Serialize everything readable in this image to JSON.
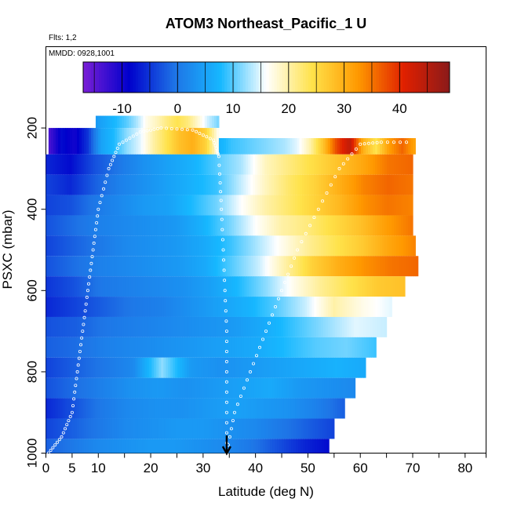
{
  "chart_data": {
    "type": "heatmap",
    "title": "ATOM3 Northeast_Pacific_1 U",
    "flights_note": "Flts: 1,2",
    "dates_note": "MMDD: 0928,1001",
    "xlabel": "Latitude (deg N)",
    "ylabel": "PSXC (mbar)",
    "xlim": [
      0,
      84
    ],
    "ylim": [
      1000,
      0
    ],
    "x_ticks": [
      0,
      5,
      10,
      20,
      30,
      40,
      50,
      60,
      70,
      80
    ],
    "x_tick_labels": [
      "0",
      "5",
      "10",
      "20",
      "30",
      "40",
      "50",
      "60",
      "70",
      "80"
    ],
    "y_ticks": [
      200,
      400,
      600,
      800,
      1000
    ],
    "y_tick_labels": [
      "200",
      "400",
      "600",
      "800",
      "1000"
    ],
    "colorbar": {
      "range": [
        -17,
        49
      ],
      "ticks": [
        -10,
        0,
        10,
        20,
        30,
        40
      ],
      "tick_labels": [
        "-10",
        "0",
        "10",
        "20",
        "30",
        "40"
      ],
      "colors": [
        "#7a1fd6",
        "#0000cc",
        "#1e74e6",
        "#17b8ff",
        "#ffffff",
        "#ffe24a",
        "#ff9900",
        "#e02000",
        "#8b1a1a"
      ]
    },
    "marker": {
      "latitude": 34.5,
      "direction": "down"
    },
    "layers": [
      {
        "p_top": 170,
        "p_bottom": 200,
        "lat_start": 9.5,
        "lat_end": 33,
        "u": [
          4,
          6,
          8,
          10,
          13,
          17,
          19,
          22,
          24,
          22,
          18,
          14,
          11
        ]
      },
      {
        "p_top": 200,
        "p_bottom": 265,
        "lat_start": 0.5,
        "lat_end": 33,
        "u": [
          -14,
          -8,
          -10,
          -5,
          5,
          8,
          12,
          15,
          20,
          24,
          28,
          30,
          26,
          16
        ]
      },
      {
        "p_top": 225,
        "p_bottom": 265,
        "lat_start": 33,
        "lat_end": 70.5,
        "u": [
          7,
          9,
          10,
          11,
          12,
          13,
          15,
          20,
          28,
          38,
          44,
          30,
          24,
          32,
          36,
          31
        ]
      },
      {
        "p_top": 265,
        "p_bottom": 315,
        "lat_start": 0,
        "lat_end": 70,
        "u": [
          -6,
          -8,
          -3,
          0,
          3,
          5,
          7,
          10,
          13,
          19,
          22,
          25,
          28,
          31,
          35,
          36
        ]
      },
      {
        "p_top": 315,
        "p_bottom": 365,
        "lat_start": 0,
        "lat_end": 70,
        "u": [
          -4,
          -6,
          -2,
          1,
          3,
          5,
          7,
          9,
          14,
          19,
          23,
          26,
          30,
          34,
          36,
          35
        ]
      },
      {
        "p_top": 365,
        "p_bottom": 415,
        "lat_start": 0,
        "lat_end": 70,
        "u": [
          -4,
          -3,
          0,
          2,
          4,
          5,
          8,
          11,
          16,
          20,
          23,
          26,
          29,
          33,
          35,
          34
        ]
      },
      {
        "p_top": 415,
        "p_bottom": 465,
        "lat_start": 0,
        "lat_end": 70,
        "u": [
          -3,
          -1,
          1,
          2,
          3,
          4,
          7,
          11,
          16,
          20,
          22,
          25,
          28,
          32,
          35
        ]
      },
      {
        "p_top": 465,
        "p_bottom": 515,
        "lat_start": 0,
        "lat_end": 70.5,
        "u": [
          -4,
          -2,
          0,
          2,
          3,
          4,
          6,
          9,
          13,
          17,
          21,
          24,
          27,
          31,
          34
        ]
      },
      {
        "p_top": 515,
        "p_bottom": 565,
        "lat_start": 0,
        "lat_end": 71,
        "u": [
          -3,
          -1,
          1,
          2,
          3,
          4,
          6,
          10,
          14,
          20,
          26,
          30,
          33,
          35,
          36
        ]
      },
      {
        "p_top": 565,
        "p_bottom": 615,
        "lat_start": 0,
        "lat_end": 68.5,
        "u": [
          -5,
          -3,
          0,
          1,
          2,
          3,
          5,
          8,
          12,
          17,
          21,
          24,
          27,
          28
        ]
      },
      {
        "p_top": 615,
        "p_bottom": 665,
        "lat_start": 0,
        "lat_end": 66,
        "u": [
          -6,
          -4,
          -2,
          0,
          1,
          3,
          5,
          7,
          10,
          14,
          20,
          17,
          15
        ]
      },
      {
        "p_top": 665,
        "p_bottom": 715,
        "lat_start": 0,
        "lat_end": 65,
        "u": [
          -3,
          -2,
          0,
          1,
          2,
          3,
          4,
          6,
          9,
          12,
          15,
          14
        ]
      },
      {
        "p_top": 715,
        "p_bottom": 765,
        "lat_start": 0,
        "lat_end": 63,
        "u": [
          -2,
          -1,
          1,
          2,
          3,
          4,
          5,
          6,
          8,
          10,
          11,
          9
        ]
      },
      {
        "p_top": 765,
        "p_bottom": 815,
        "lat_start": 0,
        "lat_end": 61,
        "u": [
          -4,
          -2,
          0,
          2,
          12,
          4,
          3,
          4,
          5,
          6,
          7,
          6
        ]
      },
      {
        "p_top": 815,
        "p_bottom": 865,
        "lat_start": 0,
        "lat_end": 59,
        "u": [
          -3,
          -1,
          1,
          3,
          4,
          3,
          4,
          5,
          6,
          4,
          3,
          2
        ]
      },
      {
        "p_top": 865,
        "p_bottom": 915,
        "lat_start": 0,
        "lat_end": 57,
        "u": [
          -6,
          -3,
          0,
          2,
          3,
          3,
          4,
          5,
          4,
          3,
          1,
          -2
        ]
      },
      {
        "p_top": 915,
        "p_bottom": 965,
        "lat_start": 0,
        "lat_end": 55,
        "u": [
          -4,
          -2,
          0,
          2,
          3,
          4,
          4,
          3,
          2,
          0,
          -2,
          -4
        ]
      },
      {
        "p_top": 965,
        "p_bottom": 1000,
        "lat_start": 0,
        "lat_end": 54,
        "u": [
          -2,
          0,
          2,
          3,
          4,
          4,
          3,
          2,
          0,
          -3,
          -6,
          -8
        ]
      }
    ]
  }
}
